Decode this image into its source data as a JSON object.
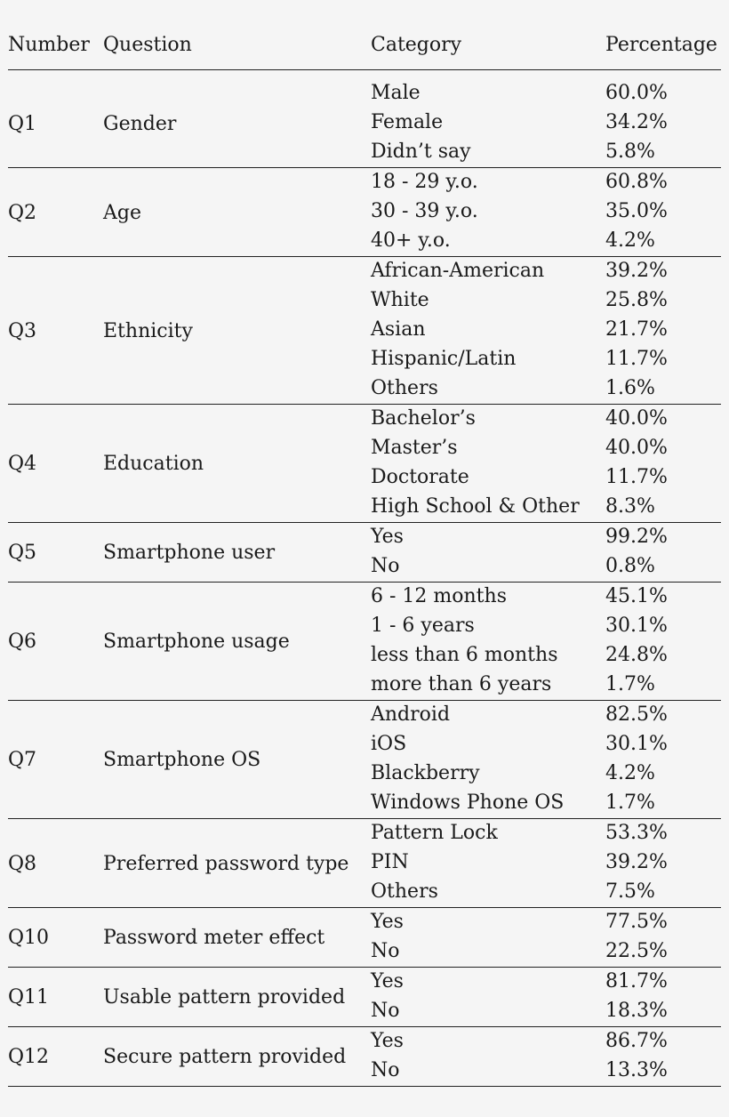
{
  "header": {
    "number": "Number",
    "question": "Question",
    "category": "Category",
    "percentage": "Percentage"
  },
  "groups": [
    {
      "number": "Q1",
      "question": "Gender",
      "rows": [
        {
          "category": "Male",
          "percentage": "60.0%"
        },
        {
          "category": "Female",
          "percentage": "34.2%"
        },
        {
          "category": "Didn’t say",
          "percentage": "5.8%"
        }
      ]
    },
    {
      "number": "Q2",
      "question": "Age",
      "rows": [
        {
          "category": "18 - 29 y.o.",
          "percentage": "60.8%"
        },
        {
          "category": "30 - 39 y.o.",
          "percentage": "35.0%"
        },
        {
          "category": "40+ y.o.",
          "percentage": "4.2%"
        }
      ]
    },
    {
      "number": "Q3",
      "question": "Ethnicity",
      "rows": [
        {
          "category": "African-American",
          "percentage": "39.2%"
        },
        {
          "category": "White",
          "percentage": "25.8%"
        },
        {
          "category": "Asian",
          "percentage": "21.7%"
        },
        {
          "category": "Hispanic/Latin",
          "percentage": "11.7%"
        },
        {
          "category": "Others",
          "percentage": "1.6%"
        }
      ]
    },
    {
      "number": "Q4",
      "question": "Education",
      "rows": [
        {
          "category": "Bachelor’s",
          "percentage": "40.0%"
        },
        {
          "category": "Master’s",
          "percentage": "40.0%"
        },
        {
          "category": "Doctorate",
          "percentage": "11.7%"
        },
        {
          "category": "High School & Other",
          "percentage": "8.3%"
        }
      ]
    },
    {
      "number": "Q5",
      "question": "Smartphone user",
      "rows": [
        {
          "category": "Yes",
          "percentage": "99.2%"
        },
        {
          "category": "No",
          "percentage": "0.8%"
        }
      ]
    },
    {
      "number": "Q6",
      "question": "Smartphone usage",
      "rows": [
        {
          "category": "6 - 12 months",
          "percentage": "45.1%"
        },
        {
          "category": "1 - 6 years",
          "percentage": "30.1%"
        },
        {
          "category": "less than 6 months",
          "percentage": "24.8%"
        },
        {
          "category": "more than 6 years",
          "percentage": "1.7%"
        }
      ]
    },
    {
      "number": "Q7",
      "question": "Smartphone OS",
      "rows": [
        {
          "category": "Android",
          "percentage": "82.5%"
        },
        {
          "category": "iOS",
          "percentage": "30.1%"
        },
        {
          "category": "Blackberry",
          "percentage": "4.2%"
        },
        {
          "category": "Windows Phone OS",
          "percentage": "1.7%"
        }
      ]
    },
    {
      "number": "Q8",
      "question": "Preferred password type",
      "rows": [
        {
          "category": "Pattern Lock",
          "percentage": "53.3%"
        },
        {
          "category": "PIN",
          "percentage": "39.2%"
        },
        {
          "category": "Others",
          "percentage": "7.5%"
        }
      ]
    },
    {
      "number": "Q10",
      "question": "Password meter effect",
      "rows": [
        {
          "category": "Yes",
          "percentage": "77.5%"
        },
        {
          "category": "No",
          "percentage": "22.5%"
        }
      ]
    },
    {
      "number": "Q11",
      "question": "Usable pattern provided",
      "rows": [
        {
          "category": "Yes",
          "percentage": "81.7%"
        },
        {
          "category": "No",
          "percentage": "18.3%"
        }
      ]
    },
    {
      "number": "Q12",
      "question": "Secure pattern provided",
      "rows": [
        {
          "category": "Yes",
          "percentage": "86.7%"
        },
        {
          "category": "No",
          "percentage": "13.3%"
        }
      ]
    }
  ]
}
